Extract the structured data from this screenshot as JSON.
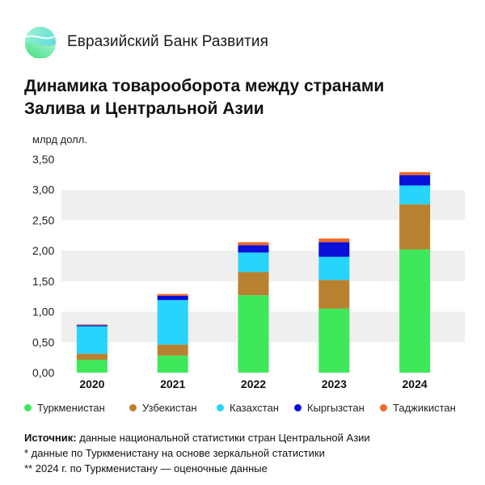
{
  "header": {
    "org_name": "Евразийский Банк Развития",
    "logo_icon": "eadb-logo-icon"
  },
  "title_line1": "Динамика товарооборота между странами",
  "title_line2": "Залива и Центральной Азии",
  "chart_data": {
    "type": "bar",
    "stacked": true,
    "ylabel": "млрд долл.",
    "ylim": [
      0,
      3.5
    ],
    "yticks": [
      "0,00",
      "0,50",
      "1,00",
      "1,50",
      "2,00",
      "2,50",
      "3,00",
      "3,50"
    ],
    "grid": "horizontal bands",
    "legend_position": "bottom",
    "categories": [
      "2020",
      "2021",
      "2022",
      "2023",
      "2024"
    ],
    "series": [
      {
        "name": "Туркменистан",
        "color": "#3ee85a",
        "values": [
          0.21,
          0.28,
          1.27,
          1.05,
          2.02
        ]
      },
      {
        "name": "Узбекистан",
        "color": "#b8812f",
        "values": [
          0.1,
          0.18,
          0.38,
          0.47,
          0.74
        ]
      },
      {
        "name": "Казахстан",
        "color": "#27d4fb",
        "values": [
          0.45,
          0.73,
          0.32,
          0.38,
          0.31
        ]
      },
      {
        "name": "Кыргызстан",
        "color": "#0a10d8",
        "values": [
          0.02,
          0.07,
          0.12,
          0.24,
          0.17
        ]
      },
      {
        "name": "Таджикистан",
        "color": "#f06a2a",
        "values": [
          0.01,
          0.03,
          0.05,
          0.06,
          0.05
        ]
      }
    ]
  },
  "notes": {
    "source_label": "Источник:",
    "source_text": " данные национальной статистики стран Центральной Азии",
    "note1": "* данные по Туркменистану на основе зеркальной статистики",
    "note2": "** 2024 г. по Туркменистану — оценочные данные"
  }
}
